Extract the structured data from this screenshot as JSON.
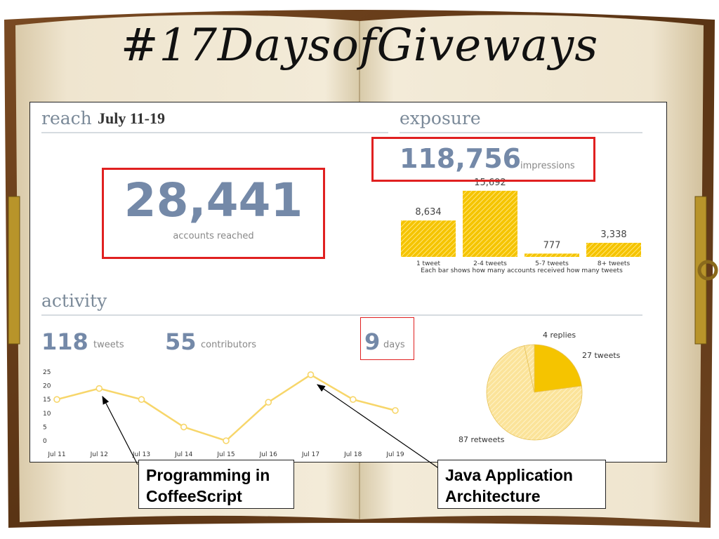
{
  "slide_title": "#17DaysofGiveways",
  "reach": {
    "heading": "reach",
    "date_range": "July 11-19",
    "value": "28,441",
    "label": "accounts reached"
  },
  "exposure": {
    "heading": "exposure",
    "value": "118,756",
    "label": "impressions",
    "caption": "Each bar shows how many accounts received how many tweets"
  },
  "activity": {
    "heading": "activity",
    "tweets_value": "118",
    "tweets_label": "tweets",
    "contributors_value": "55",
    "contributors_label": "contributors",
    "days_value": "9",
    "days_label": "days"
  },
  "callouts": {
    "left": [
      "Programming in",
      "CoffeeScript"
    ],
    "right": [
      "Java Application",
      "Architecture"
    ]
  },
  "colors": {
    "accent_yellow": "#f5c400",
    "line_yellow": "#f7d66a",
    "number_blue": "#7489a8",
    "highlight_red": "#e02020"
  },
  "chart_data": [
    {
      "type": "bar",
      "categories": [
        "1 tweet",
        "2-4 tweets",
        "5-7 tweets",
        "8+ tweets"
      ],
      "values": [
        8634,
        15692,
        777,
        3338
      ],
      "value_labels": [
        "8,634",
        "15,692",
        "777",
        "3,338"
      ],
      "title": "",
      "xlabel": "",
      "ylabel": "",
      "ylim": [
        0,
        16000
      ]
    },
    {
      "type": "line",
      "categories": [
        "Jul 11",
        "Jul 12",
        "Jul 13",
        "Jul 14",
        "Jul 15",
        "Jul 16",
        "Jul 17",
        "Jul 18",
        "Jul 19"
      ],
      "values": [
        15,
        19,
        15,
        5,
        0,
        14,
        24,
        15,
        11
      ],
      "yticks": [
        0,
        5,
        10,
        15,
        20,
        25
      ],
      "ylim": [
        0,
        25
      ],
      "title": "",
      "xlabel": "",
      "ylabel": ""
    },
    {
      "type": "pie",
      "slices": [
        {
          "label": "27 tweets",
          "value": 27
        },
        {
          "label": "87 retweets",
          "value": 87
        },
        {
          "label": "4 replies",
          "value": 4
        }
      ]
    }
  ]
}
